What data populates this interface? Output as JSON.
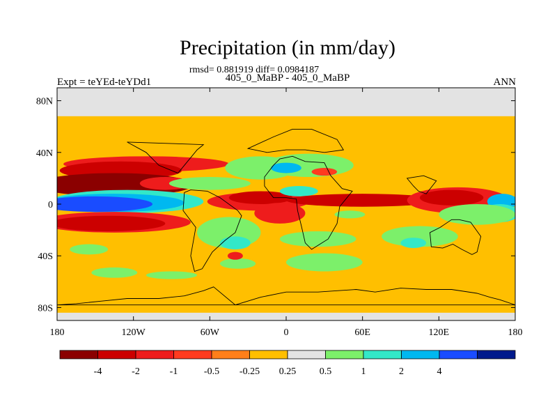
{
  "header": {
    "title": "Precipitation (in mm/day)",
    "stats": "rmsd= 0.881919 diff= 0.0984187",
    "subtitle": "405_0_MaBP - 405_0_MaBP",
    "experiment": "Expt = teYEd-teYDd1",
    "season": "ANN"
  },
  "chart_data": {
    "type": "heatmap",
    "title": "Precipitation (in mm/day)",
    "subtitle": "405_0_MaBP - 405_0_MaBP",
    "x_ticks": [
      {
        "value": -180,
        "label": "180"
      },
      {
        "value": -120,
        "label": "120W"
      },
      {
        "value": -60,
        "label": "60W"
      },
      {
        "value": 0,
        "label": "0"
      },
      {
        "value": 60,
        "label": "60E"
      },
      {
        "value": 120,
        "label": "120E"
      },
      {
        "value": 180,
        "label": "180"
      }
    ],
    "y_ticks": [
      {
        "value": 80,
        "label": "80N"
      },
      {
        "value": 40,
        "label": "40N"
      },
      {
        "value": 0,
        "label": "0"
      },
      {
        "value": -40,
        "label": "40S"
      },
      {
        "value": -80,
        "label": "80S"
      }
    ],
    "xlim": [
      -180,
      180
    ],
    "ylim": [
      -90,
      90
    ],
    "colorbar": {
      "levels": [
        "-4",
        "-2",
        "-1",
        "-0.5",
        "-0.25",
        "0.25",
        "0.5",
        "1",
        "2",
        "4"
      ],
      "colors": [
        "#8b0000",
        "#cc0000",
        "#ee1c1c",
        "#ff3b1f",
        "#ff7f1a",
        "#ffbf00",
        "#e3e3e3",
        "#7cf06a",
        "#33e8c8",
        "#00b8f0",
        "#1a4cff",
        "#001a8c"
      ]
    },
    "regions": [
      {
        "type": "band",
        "lat": [
          68,
          90
        ],
        "value": 0.4
      },
      {
        "type": "band",
        "lat": [
          -90,
          -84
        ],
        "value": 0.3
      },
      {
        "type": "blob",
        "lon": -110,
        "lat": 31,
        "rlon": 65,
        "rlat": 6,
        "value": -1.5
      },
      {
        "type": "blob",
        "lon": -130,
        "lat": 26,
        "rlon": 48,
        "rlat": 7,
        "value": -3
      },
      {
        "type": "blob",
        "lon": -135,
        "lat": 15,
        "rlon": 62,
        "rlat": 9,
        "value": -5
      },
      {
        "type": "blob",
        "lon": -95,
        "lat": 16,
        "rlon": 20,
        "rlat": 5,
        "value": -1.5
      },
      {
        "type": "blob",
        "lon": -60,
        "lat": 16,
        "rlon": 32,
        "rlat": 5,
        "value": 0.7
      },
      {
        "type": "blob",
        "lon": -125,
        "lat": 2,
        "rlon": 60,
        "rlat": 9,
        "value": 1.5
      },
      {
        "type": "blob",
        "lon": -135,
        "lat": 1,
        "rlon": 55,
        "rlat": 7,
        "value": 3
      },
      {
        "type": "blob",
        "lon": -150,
        "lat": 0,
        "rlon": 45,
        "rlat": 6,
        "value": 5
      },
      {
        "type": "blob",
        "lon": -135,
        "lat": -14,
        "rlon": 60,
        "rlat": 8,
        "value": -1.5
      },
      {
        "type": "blob",
        "lon": -140,
        "lat": -15,
        "rlon": 45,
        "rlat": 6,
        "value": -3
      },
      {
        "type": "blob",
        "lon": -40,
        "lat": -18,
        "rlon": 15,
        "rlat": 4,
        "value": -1.5
      },
      {
        "type": "blob",
        "lon": -22,
        "lat": 2,
        "rlon": 40,
        "rlat": 7,
        "value": -1.5
      },
      {
        "type": "blob",
        "lon": -20,
        "lat": 5,
        "rlon": 25,
        "rlat": 5,
        "value": -3
      },
      {
        "type": "blob",
        "lon": -5,
        "lat": -7,
        "rlon": 20,
        "rlat": 8,
        "value": -1.5
      },
      {
        "type": "blob",
        "lon": -20,
        "lat": 28,
        "rlon": 28,
        "rlat": 9,
        "value": 0.7
      },
      {
        "type": "blob",
        "lon": 18,
        "lat": 30,
        "rlon": 35,
        "rlat": 9,
        "value": 0.7
      },
      {
        "type": "blob",
        "lon": 0,
        "lat": 28,
        "rlon": 12,
        "rlat": 4,
        "value": 3
      },
      {
        "type": "blob",
        "lon": 30,
        "lat": 25,
        "rlon": 10,
        "rlat": 3,
        "value": -0.6
      },
      {
        "type": "blob",
        "lon": 10,
        "lat": 10,
        "rlon": 15,
        "rlat": 4,
        "value": 1.5
      },
      {
        "type": "blob",
        "lon": 60,
        "lat": 3,
        "rlon": 60,
        "rlat": 5,
        "value": -3
      },
      {
        "type": "blob",
        "lon": 135,
        "lat": 3,
        "rlon": 40,
        "rlat": 10,
        "value": -1.5
      },
      {
        "type": "blob",
        "lon": 130,
        "lat": 5,
        "rlon": 25,
        "rlat": 6,
        "value": -3
      },
      {
        "type": "blob",
        "lon": 170,
        "lat": 2,
        "rlon": 12,
        "rlat": 6,
        "value": 3
      },
      {
        "type": "blob",
        "lon": 168,
        "lat": -7,
        "rlon": 15,
        "rlat": 7,
        "value": 1.5
      },
      {
        "type": "blob",
        "lon": 150,
        "lat": -8,
        "rlon": 30,
        "rlat": 8,
        "value": 0.7
      },
      {
        "type": "blob",
        "lon": 50,
        "lat": -8,
        "rlon": 12,
        "rlat": 3,
        "value": 0.7
      },
      {
        "type": "blob",
        "lon": -45,
        "lat": -22,
        "rlon": 25,
        "rlat": 12,
        "value": 0.7
      },
      {
        "type": "blob",
        "lon": -40,
        "lat": -30,
        "rlon": 12,
        "rlat": 5,
        "value": 1.5
      },
      {
        "type": "blob",
        "lon": 25,
        "lat": -27,
        "rlon": 30,
        "rlat": 6,
        "value": 0.7
      },
      {
        "type": "blob",
        "lon": 105,
        "lat": -25,
        "rlon": 30,
        "rlat": 8,
        "value": 0.7
      },
      {
        "type": "blob",
        "lon": 100,
        "lat": -30,
        "rlon": 10,
        "rlat": 4,
        "value": 1.5
      },
      {
        "type": "blob",
        "lon": -155,
        "lat": -35,
        "rlon": 15,
        "rlat": 4,
        "value": 0.7
      },
      {
        "type": "blob",
        "lon": -38,
        "lat": -46,
        "rlon": 14,
        "rlat": 4,
        "value": 0.7
      },
      {
        "type": "blob",
        "lon": -40,
        "lat": -40,
        "rlon": 6,
        "rlat": 3,
        "value": -1.5
      },
      {
        "type": "blob",
        "lon": 30,
        "lat": -45,
        "rlon": 30,
        "rlat": 7,
        "value": 0.7
      },
      {
        "type": "blob",
        "lon": -135,
        "lat": -53,
        "rlon": 18,
        "rlat": 4,
        "value": 0.7
      },
      {
        "type": "blob",
        "lon": -90,
        "lat": -55,
        "rlon": 20,
        "rlat": 3,
        "value": 0.7
      }
    ]
  }
}
